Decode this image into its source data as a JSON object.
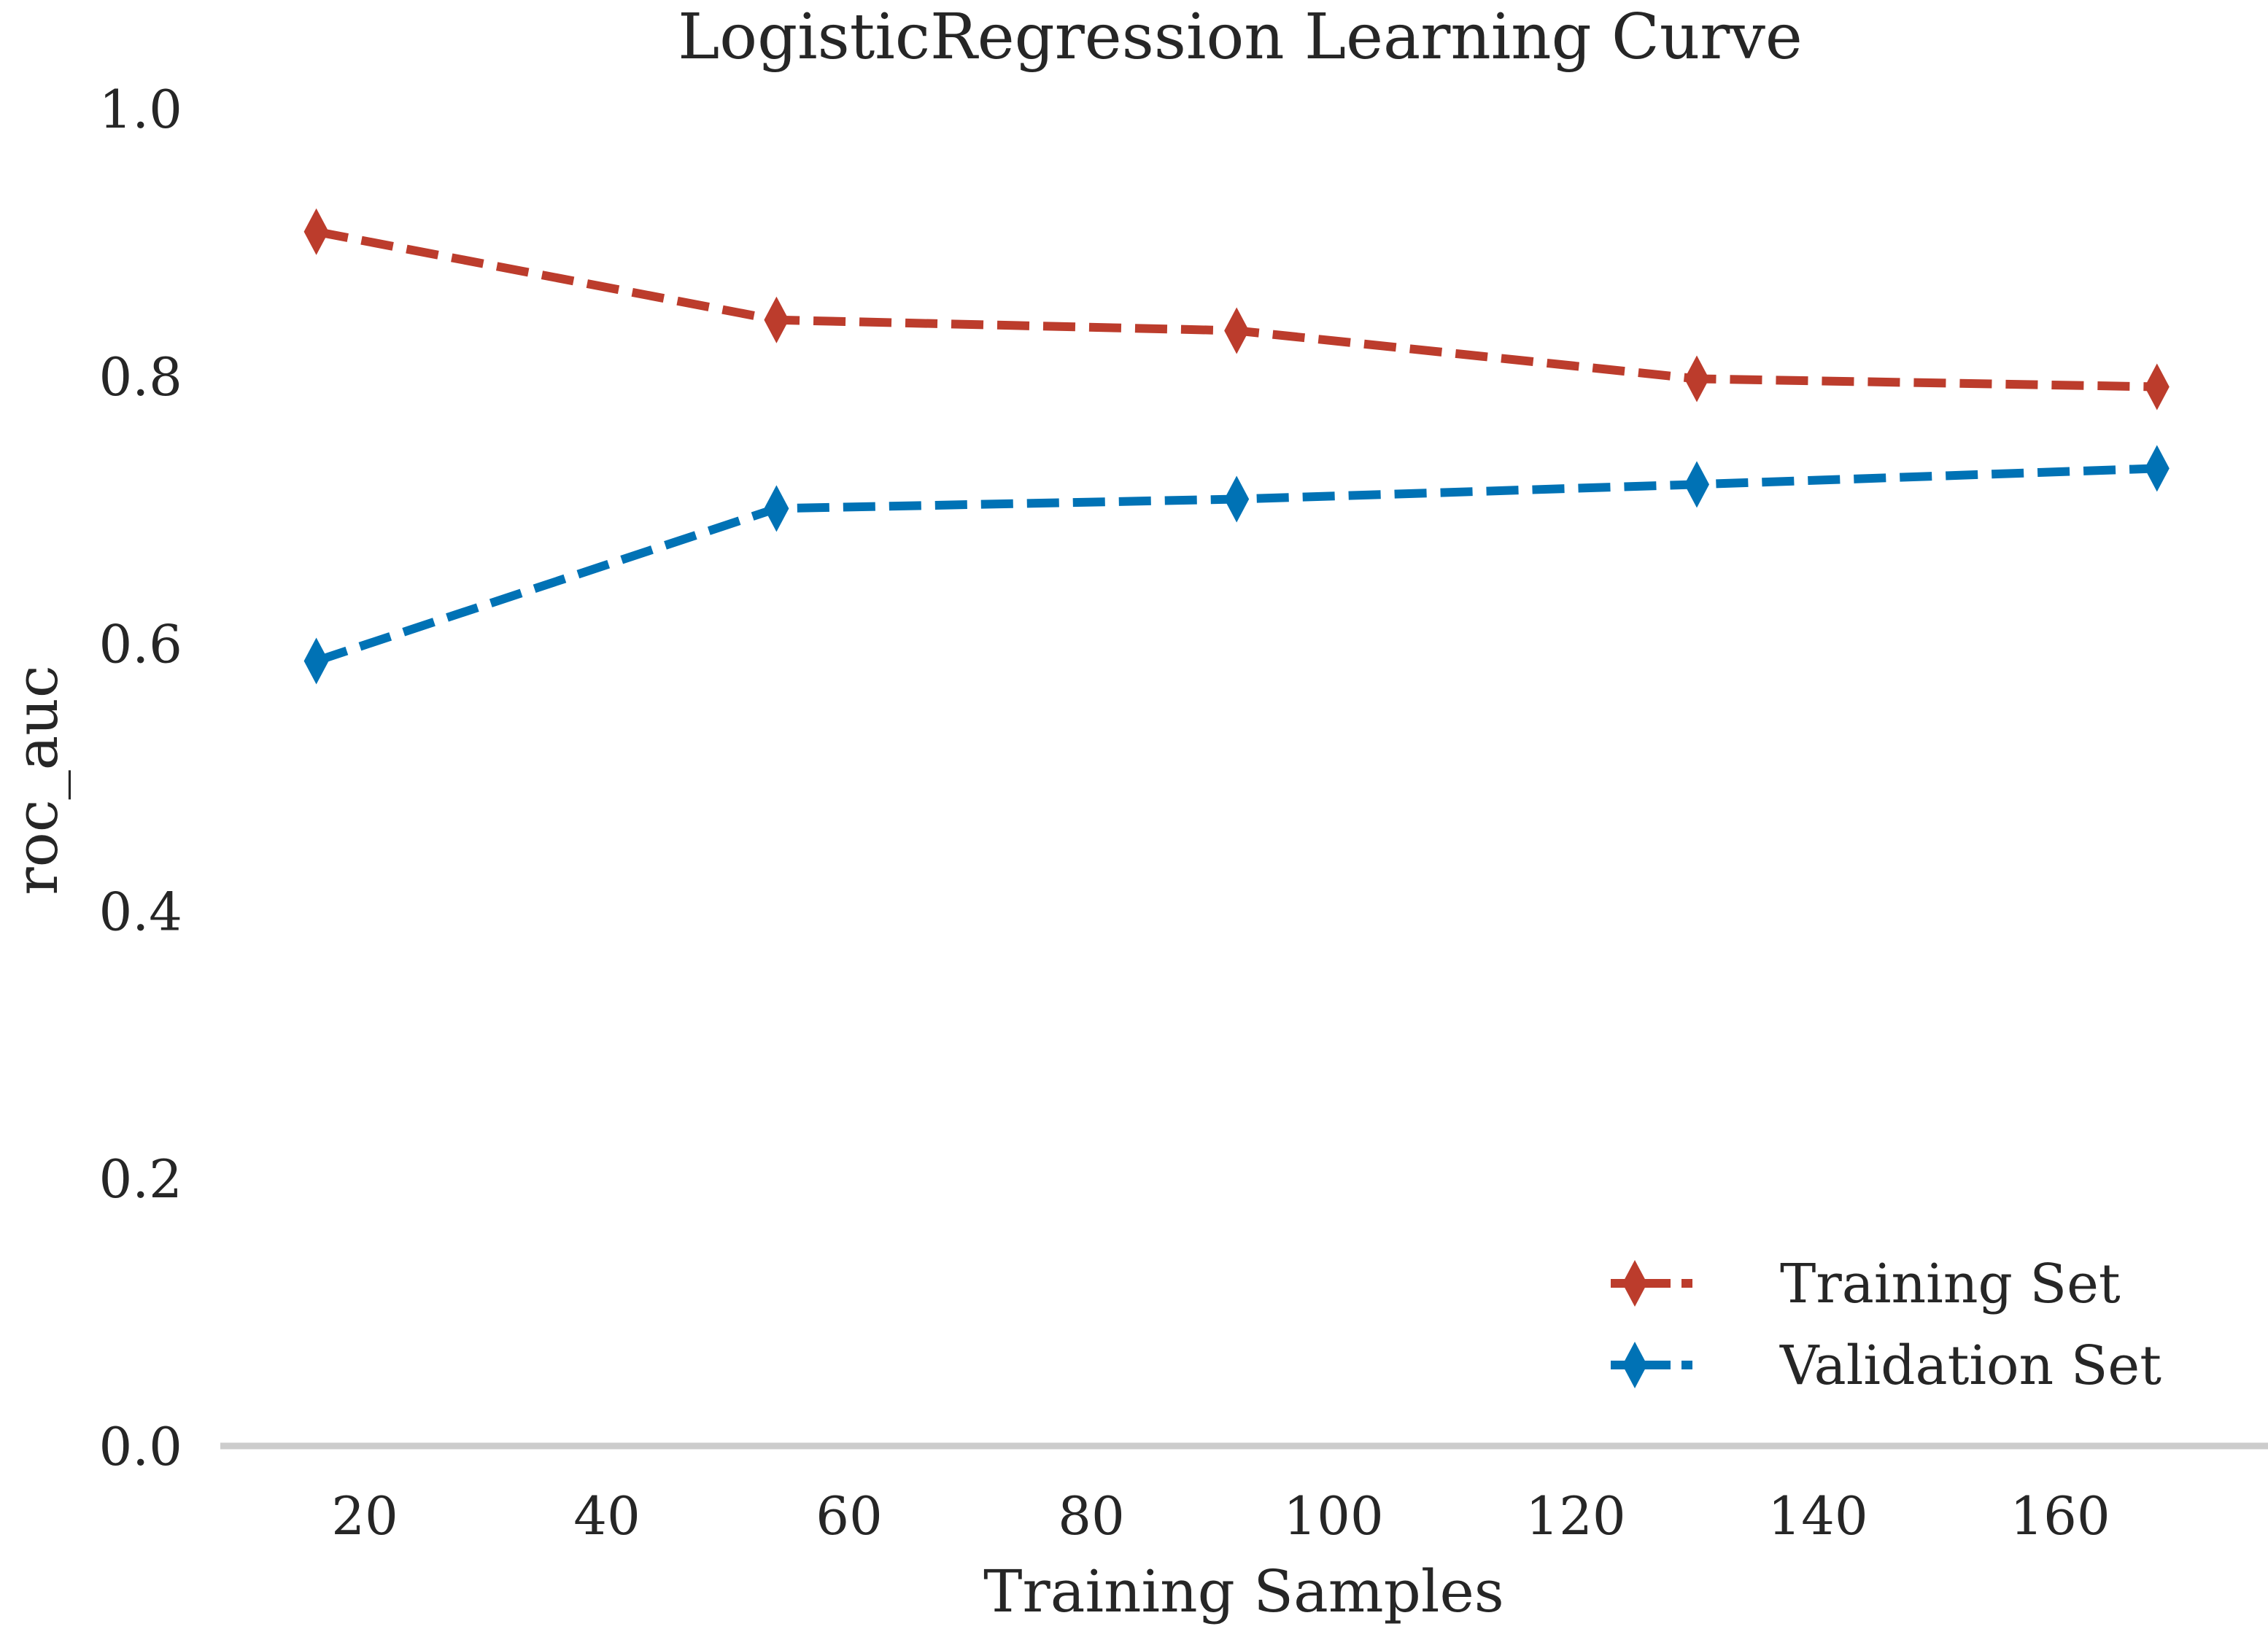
{
  "chart_data": {
    "type": "line",
    "title": "LogisticRegression Learning Curve",
    "xlabel": "Training Samples",
    "ylabel": "roc_auc",
    "xlim": [
      5,
      175
    ],
    "ylim": [
      0.0,
      1.0
    ],
    "xticks": [
      "20",
      "40",
      "60",
      "80",
      "100",
      "120",
      "140",
      "160"
    ],
    "xtick_values": [
      20,
      40,
      60,
      80,
      100,
      120,
      140,
      160
    ],
    "yticks": [
      "0.0",
      "0.2",
      "0.4",
      "0.6",
      "0.8",
      "1.0"
    ],
    "ytick_values": [
      0.0,
      0.2,
      0.4,
      0.6,
      0.8,
      1.0
    ],
    "grid": false,
    "legend_position": "bottom-right",
    "x": [
      16,
      54,
      92,
      130,
      168
    ],
    "series": [
      {
        "name": "Training Set",
        "color": "#bc3c2c",
        "marker": "diamond",
        "linestyle": "dashed",
        "values": [
          0.908,
          0.842,
          0.834,
          0.798,
          0.792
        ]
      },
      {
        "name": "Validation Set",
        "color": "#0072b5",
        "marker": "diamond",
        "linestyle": "dashed",
        "values": [
          0.587,
          0.701,
          0.708,
          0.719,
          0.731
        ]
      }
    ],
    "axis_color": "#cccccc"
  }
}
